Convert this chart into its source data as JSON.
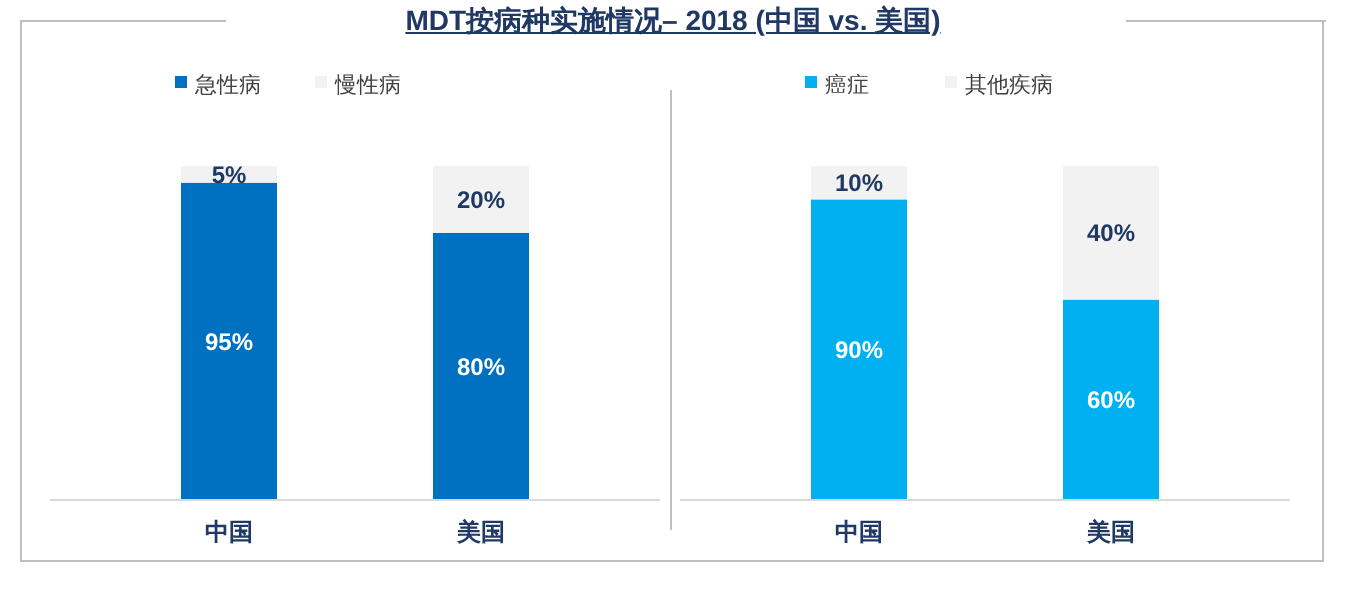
{
  "chart_data": [
    {
      "type": "bar",
      "title": "MDT按病种实施情况– 2018 (中国 vs. 美国)",
      "categories": [
        "中国",
        "美国"
      ],
      "stacked": true,
      "legend": "top",
      "series": [
        {
          "name": "急性病",
          "color": "#0070c0",
          "values": [
            95,
            80
          ],
          "value_labels": [
            "95%",
            "80%"
          ]
        },
        {
          "name": "慢性病",
          "color": "#f2f2f2",
          "values": [
            5,
            20
          ],
          "value_labels": [
            "5%",
            "20%"
          ]
        }
      ]
    },
    {
      "type": "bar",
      "categories": [
        "中国",
        "美国"
      ],
      "stacked": true,
      "legend": "top",
      "series": [
        {
          "name": "癌症",
          "color": "#00b0f0",
          "values": [
            90,
            60
          ],
          "value_labels": [
            "90%",
            "60%"
          ]
        },
        {
          "name": "其他疾病",
          "color": "#f2f2f2",
          "values": [
            10,
            40
          ],
          "value_labels": [
            "10%",
            "40%"
          ]
        }
      ]
    }
  ]
}
